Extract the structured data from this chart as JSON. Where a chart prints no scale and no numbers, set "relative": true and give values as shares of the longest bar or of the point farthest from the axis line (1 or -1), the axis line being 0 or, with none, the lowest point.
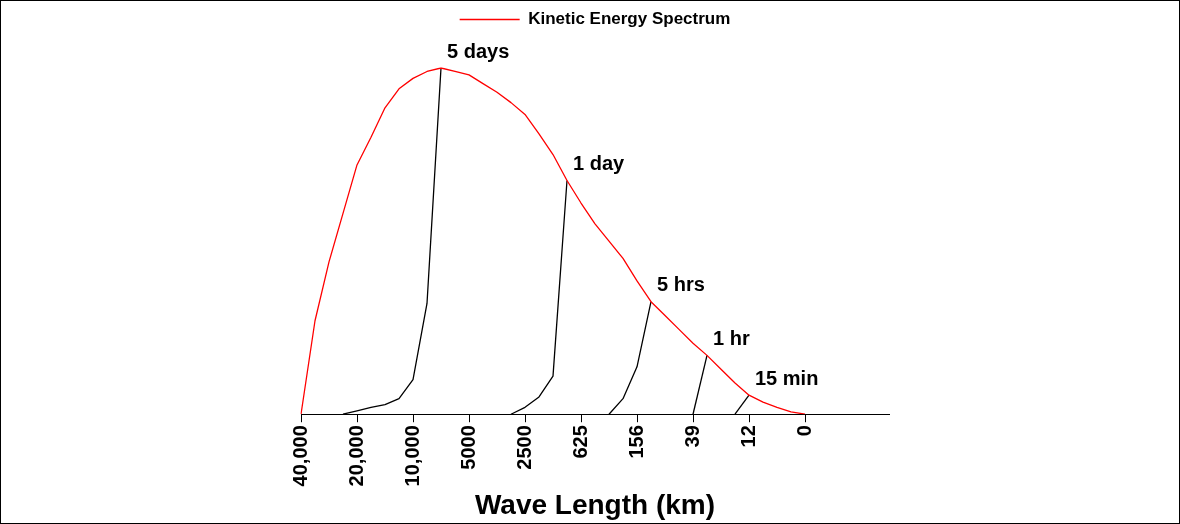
{
  "chart_data": {
    "type": "line",
    "relative": true,
    "xlabel": "Wave Length (km)",
    "legend": "top",
    "marker": "none",
    "grid": false,
    "categories": [
      "40,000",
      null,
      null,
      null,
      "20,000",
      null,
      null,
      null,
      "10,000",
      null,
      null,
      null,
      "5000",
      null,
      null,
      null,
      "2500",
      null,
      null,
      null,
      "625",
      null,
      null,
      null,
      "156",
      null,
      null,
      null,
      "39",
      null,
      null,
      null,
      "12",
      null,
      null,
      null,
      "0",
      null,
      null,
      null,
      null,
      null,
      null
    ],
    "series": [
      {
        "name": "Kinetic Energy Spectrum",
        "color": "#ff0000",
        "values": [
          0,
          0.27,
          0.44,
          0.58,
          0.72,
          0.8,
          0.885,
          0.94,
          0.97,
          0.99,
          1,
          0.99,
          0.98,
          0.955,
          0.93,
          0.9,
          0.866,
          0.81,
          0.75,
          0.675,
          0.61,
          0.55,
          0.5,
          0.45,
          0.385,
          0.325,
          0.285,
          0.245,
          0.205,
          0.17,
          0.13,
          0.09,
          0.055,
          0.035,
          0.02,
          0.007,
          0,
          null,
          null,
          null,
          null,
          null,
          null
        ]
      },
      {
        "color": "#000000",
        "values": [
          null,
          null,
          null,
          0,
          0.01,
          0.02,
          0.028,
          0.045,
          0.1,
          0.32,
          1,
          null,
          null,
          null,
          null,
          null,
          null,
          null,
          null,
          null,
          null,
          null,
          null,
          null,
          null,
          null,
          null,
          null,
          null,
          null,
          null,
          null,
          null,
          null,
          null,
          null,
          null,
          null,
          null,
          null,
          null,
          null,
          null
        ]
      },
      {
        "color": "#000000",
        "values": [
          null,
          null,
          null,
          null,
          null,
          null,
          null,
          null,
          null,
          null,
          null,
          null,
          null,
          null,
          null,
          0,
          0.02,
          0.05,
          0.11,
          0.675,
          null,
          null,
          null,
          null,
          null,
          null,
          null,
          null,
          null,
          null,
          null,
          null,
          null,
          null,
          null,
          null,
          null,
          null,
          null,
          null,
          null,
          null,
          null
        ]
      },
      {
        "color": "#000000",
        "values": [
          null,
          null,
          null,
          null,
          null,
          null,
          null,
          null,
          null,
          null,
          null,
          null,
          null,
          null,
          null,
          null,
          null,
          null,
          null,
          null,
          null,
          null,
          0,
          0.045,
          0.137,
          0.325,
          null,
          null,
          null,
          null,
          null,
          null,
          null,
          null,
          null,
          null,
          null,
          null,
          null,
          null,
          null,
          null,
          null
        ]
      },
      {
        "color": "#000000",
        "values": [
          null,
          null,
          null,
          null,
          null,
          null,
          null,
          null,
          null,
          null,
          null,
          null,
          null,
          null,
          null,
          null,
          null,
          null,
          null,
          null,
          null,
          null,
          null,
          null,
          null,
          null,
          null,
          null,
          0,
          0.17,
          null,
          null,
          null,
          null,
          null,
          null,
          null,
          null,
          null,
          null,
          null,
          null,
          null
        ]
      },
      {
        "color": "#000000",
        "values": [
          null,
          null,
          null,
          null,
          null,
          null,
          null,
          null,
          null,
          null,
          null,
          null,
          null,
          null,
          null,
          null,
          null,
          null,
          null,
          null,
          null,
          null,
          null,
          null,
          null,
          null,
          null,
          null,
          null,
          null,
          null,
          0,
          0.055,
          null,
          null,
          null,
          null,
          null,
          null,
          null,
          null,
          null,
          null
        ]
      }
    ],
    "annotations": [
      "5 days",
      "1 day",
      "5 hrs",
      "1 hr",
      "15 min"
    ]
  }
}
